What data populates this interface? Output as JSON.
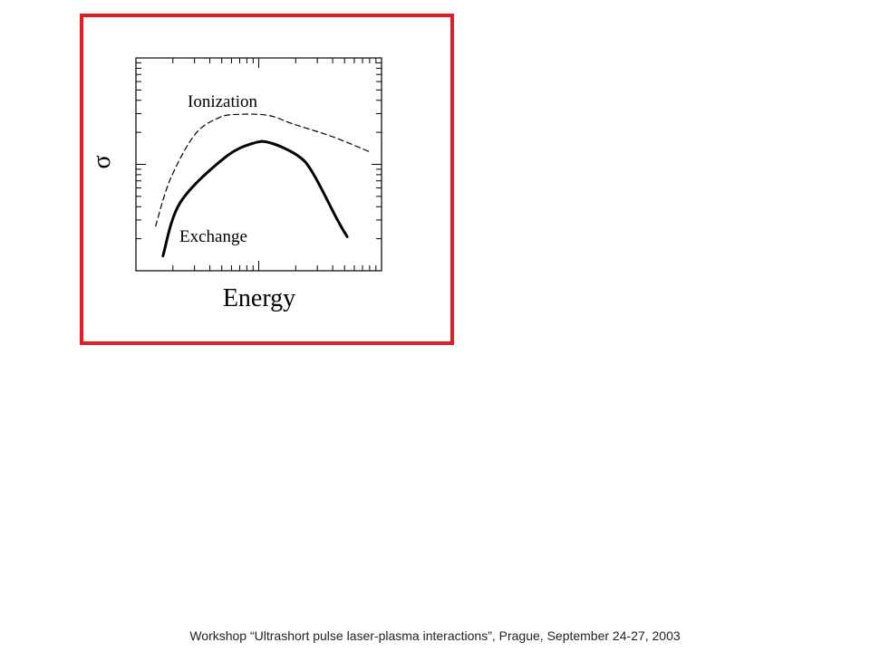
{
  "footer": {
    "text": "Workshop “Ultrashort pulse laser-plasma interactions”, Prague, September 24-27, 2003"
  },
  "colors": {
    "frame": "#e51c23",
    "curve": "#000000"
  },
  "chart_data": {
    "type": "line",
    "xlabel": "Energy",
    "ylabel": "σ",
    "xscale": "log",
    "yscale": "log",
    "xlim": [
      0,
      1
    ],
    "ylim": [
      0,
      1
    ],
    "grid": false,
    "ticks": "log-minor, no tick labels",
    "series": [
      {
        "name": "Ionization",
        "style": "dashed",
        "x": [
          0.08,
          0.14,
          0.24,
          0.34,
          0.42,
          0.54,
          0.64,
          0.8,
          0.95
        ],
        "y": [
          0.21,
          0.43,
          0.64,
          0.72,
          0.735,
          0.73,
          0.69,
          0.63,
          0.56
        ]
      },
      {
        "name": "Exchange",
        "style": "solid",
        "x": [
          0.11,
          0.18,
          0.36,
          0.48,
          0.55,
          0.66,
          0.72,
          0.82,
          0.86
        ],
        "y": [
          0.07,
          0.32,
          0.53,
          0.6,
          0.6,
          0.54,
          0.46,
          0.24,
          0.16
        ]
      }
    ],
    "annotations": [
      {
        "text": "Ionization",
        "series": "Ionization"
      },
      {
        "text": "Exchange",
        "series": "Exchange"
      }
    ]
  }
}
